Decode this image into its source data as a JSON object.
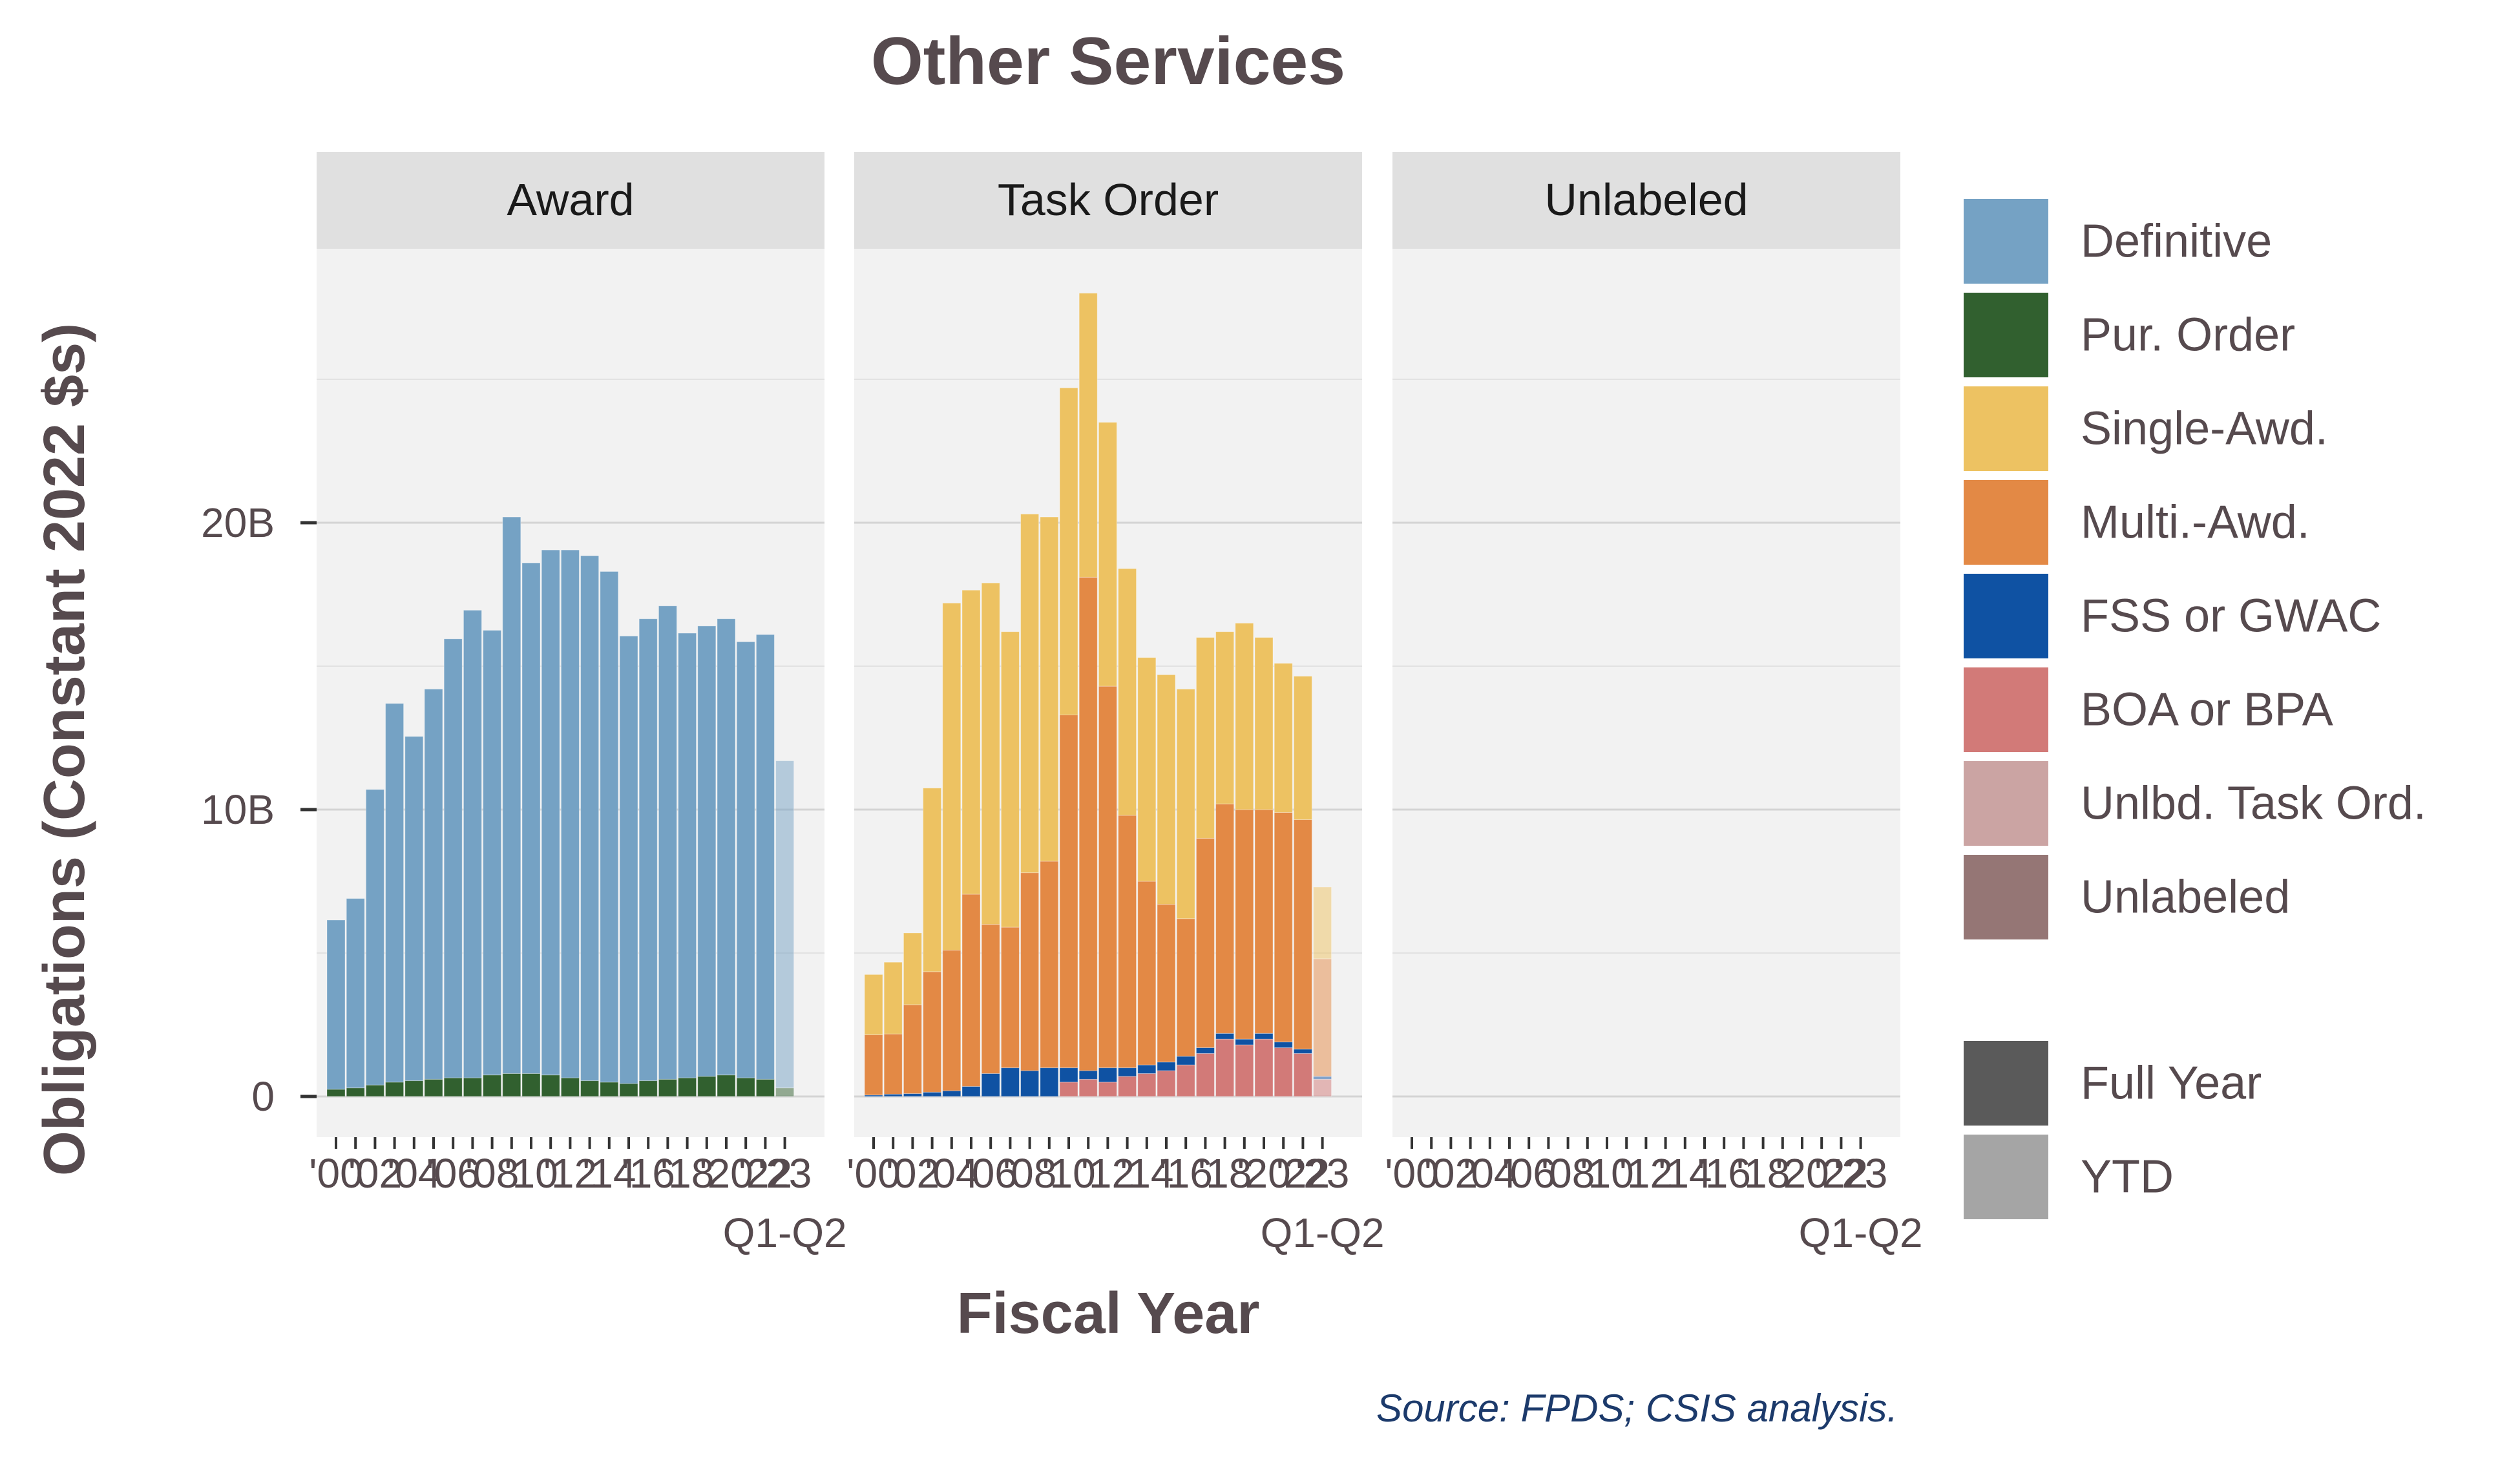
{
  "chart_data": {
    "type": "bar",
    "stacked": true,
    "title": "Other Services",
    "ylabel": "Obligations (Constant 2022 $s)",
    "xlabel": "Fiscal Year",
    "source": "Source: FPDS; CSIS analysis.",
    "ylim": [
      0,
      30
    ],
    "y_unit": "billions of constant 2022 dollars",
    "y_ticks": [
      {
        "value": 0,
        "label": "0"
      },
      {
        "value": 10,
        "label": "10B"
      },
      {
        "value": 20,
        "label": "20B"
      }
    ],
    "x_tick_labels": [
      "'00",
      "'02",
      "'04",
      "'06",
      "'08",
      "'10",
      "'12",
      "'14",
      "'16",
      "'18",
      "'20",
      "'22",
      "'23"
    ],
    "x_ytd_label": "Q1-Q2",
    "years": [
      2000,
      2001,
      2002,
      2003,
      2004,
      2005,
      2006,
      2007,
      2008,
      2009,
      2010,
      2011,
      2012,
      2013,
      2014,
      2015,
      2016,
      2017,
      2018,
      2019,
      2020,
      2021,
      2022,
      2023
    ],
    "ytd_year": 2023,
    "grid": true,
    "legend_position": "right",
    "colors": {
      "Definitive": "#75a2c4",
      "Pur. Order": "#31602f",
      "Single-Awd.": "#edc262",
      "Multi.-Awd.": "#e38945",
      "FSS or GWAC": "#0f52a3",
      "BOA or BPA": "#d27a78",
      "Unlbd. Task Ord.": "#cba4a3",
      "Unlabeled": "#957675",
      "panel_bg": "#f2f2f2",
      "strip_bg": "#e0e0e0",
      "text": "#564a4e",
      "source_text": "#1c3a6b"
    },
    "panels": [
      {
        "name": "Award",
        "series": [
          {
            "name": "Pur. Order",
            "values": [
              0.25,
              0.3,
              0.4,
              0.5,
              0.55,
              0.6,
              0.65,
              0.65,
              0.75,
              0.8,
              0.8,
              0.75,
              0.65,
              0.55,
              0.5,
              0.45,
              0.55,
              0.6,
              0.65,
              0.7,
              0.75,
              0.65,
              0.6,
              0.3
            ]
          },
          {
            "name": "Definitive",
            "values": [
              5.9,
              6.6,
              10.3,
              13.2,
              12.0,
              13.6,
              15.3,
              16.3,
              15.5,
              19.4,
              17.8,
              18.3,
              18.4,
              18.3,
              17.8,
              15.6,
              16.1,
              16.5,
              15.5,
              15.7,
              15.9,
              15.2,
              15.5,
              11.4
            ]
          }
        ]
      },
      {
        "name": "Task Order",
        "series": [
          {
            "name": "BOA or BPA",
            "values": [
              0,
              0,
              0,
              0,
              0,
              0,
              0,
              0,
              0,
              0,
              0.5,
              0.6,
              0.5,
              0.7,
              0.8,
              0.9,
              1.1,
              1.5,
              2.0,
              1.8,
              2.0,
              1.7,
              1.5,
              0.6
            ]
          },
          {
            "name": "FSS or GWAC",
            "values": [
              0.05,
              0.08,
              0.1,
              0.15,
              0.2,
              0.35,
              0.8,
              1.0,
              0.9,
              1.0,
              0.5,
              0.3,
              0.5,
              0.3,
              0.3,
              0.3,
              0.3,
              0.2,
              0.2,
              0.2,
              0.2,
              0.2,
              0.15,
              0.1
            ]
          },
          {
            "name": "Multi.-Awd.",
            "values": [
              2.1,
              2.1,
              3.1,
              4.2,
              4.9,
              6.7,
              5.2,
              4.9,
              6.9,
              7.2,
              12.3,
              17.2,
              13.3,
              8.8,
              6.4,
              5.5,
              4.8,
              7.3,
              8.0,
              8.0,
              7.8,
              8.0,
              8.0,
              4.1
            ]
          },
          {
            "name": "Single-Awd.",
            "values": [
              2.1,
              2.5,
              2.5,
              6.4,
              12.1,
              10.6,
              11.9,
              10.3,
              12.5,
              12.0,
              11.4,
              9.9,
              9.2,
              8.6,
              7.8,
              8.0,
              8.0,
              7.0,
              6.0,
              6.5,
              6.0,
              5.2,
              5.0,
              2.5
            ]
          }
        ]
      },
      {
        "name": "Unlabeled",
        "series": []
      }
    ],
    "legend": [
      {
        "label": "Definitive",
        "color": "#75a2c4"
      },
      {
        "label": "Pur. Order",
        "color": "#31602f"
      },
      {
        "label": "Single-Awd.",
        "color": "#edc262"
      },
      {
        "label": "Multi.-Awd.",
        "color": "#e38945"
      },
      {
        "label": "FSS or GWAC",
        "color": "#0f52a3"
      },
      {
        "label": "BOA or BPA",
        "color": "#d27a78"
      },
      {
        "label": "Unlbd. Task Ord.",
        "color": "#cba4a3"
      },
      {
        "label": "Unlabeled",
        "color": "#957675"
      }
    ],
    "legend2": [
      {
        "label": "Full Year",
        "color": "#5a5a5a"
      },
      {
        "label": "YTD",
        "color": "#a5a5a5"
      }
    ]
  }
}
